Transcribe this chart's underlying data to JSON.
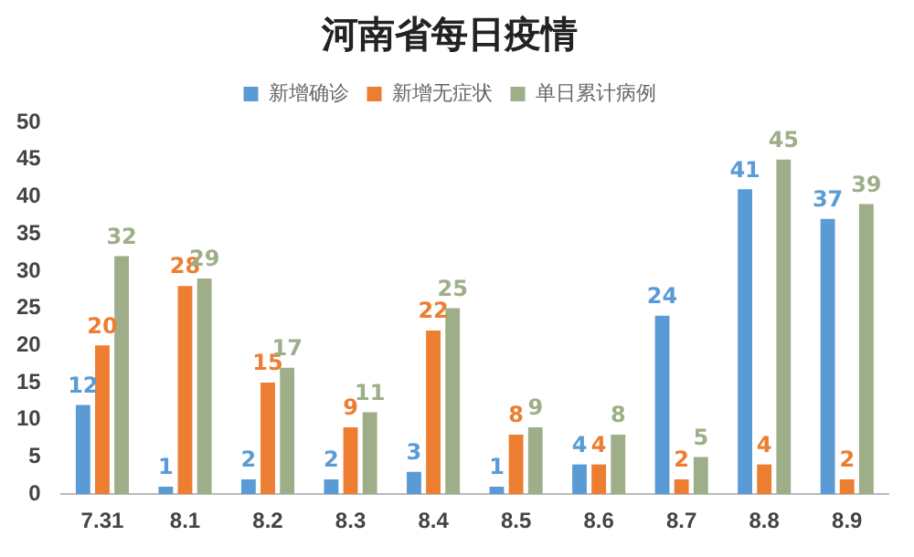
{
  "chart_data": {
    "type": "bar",
    "title": "河南省每日疫情",
    "categories": [
      "7.31",
      "8.1",
      "8.2",
      "8.3",
      "8.4",
      "8.5",
      "8.6",
      "8.7",
      "8.8",
      "8.9"
    ],
    "series": [
      {
        "name": "新增确诊",
        "color": "#5b9bd5",
        "values": [
          12,
          1,
          2,
          2,
          3,
          1,
          4,
          24,
          41,
          37
        ]
      },
      {
        "name": "新增无症状",
        "color": "#ed7d31",
        "values": [
          20,
          28,
          15,
          9,
          22,
          8,
          4,
          2,
          4,
          2
        ]
      },
      {
        "name": "单日累计病例",
        "color": "#9dae88",
        "values": [
          32,
          29,
          17,
          11,
          25,
          9,
          8,
          5,
          45,
          39
        ]
      }
    ],
    "ylim": [
      0,
      50
    ],
    "yticks": [
      0,
      5,
      10,
      15,
      20,
      25,
      30,
      35,
      40,
      45,
      50
    ],
    "grid": false,
    "legend": "top",
    "data_labels": true
  }
}
